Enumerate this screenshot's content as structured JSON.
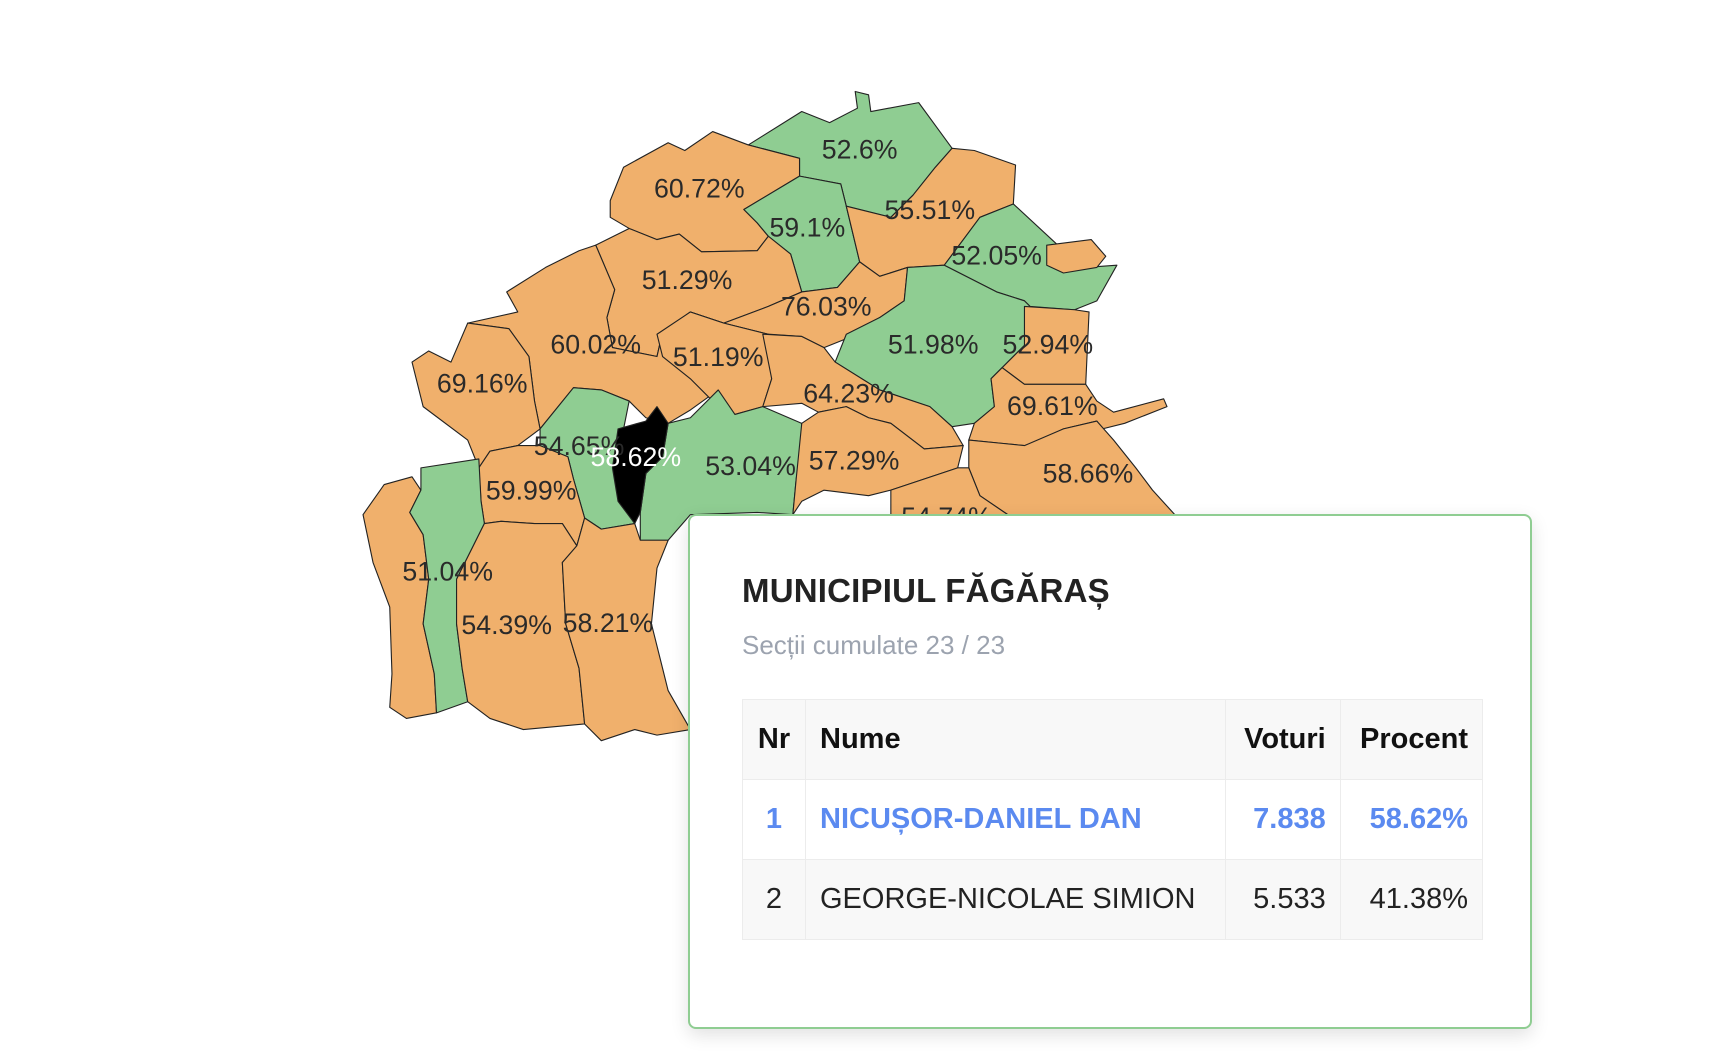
{
  "map": {
    "colors": {
      "winner_a": "#f0b06c",
      "winner_b": "#8fcd92",
      "selected": "#000000"
    },
    "regions": [
      {
        "label": "52.6%",
        "fill": "#8fcd92"
      },
      {
        "label": "60.72%",
        "fill": "#f0b06c"
      },
      {
        "label": "59.1%",
        "fill": "#8fcd92"
      },
      {
        "label": "55.51%",
        "fill": "#f0b06c"
      },
      {
        "label": "52.05%",
        "fill": "#8fcd92"
      },
      {
        "label": "51.29%",
        "fill": "#f0b06c"
      },
      {
        "label": "76.03%",
        "fill": "#f0b06c"
      },
      {
        "label": "51.98%",
        "fill": "#8fcd92"
      },
      {
        "label": "52.94%",
        "fill": "#f0b06c"
      },
      {
        "label": "60.02%",
        "fill": "#f0b06c"
      },
      {
        "label": "69.16%",
        "fill": "#f0b06c"
      },
      {
        "label": "51.19%",
        "fill": "#f0b06c"
      },
      {
        "label": "64.23%",
        "fill": "#f0b06c"
      },
      {
        "label": "54.65%",
        "fill": "#8fcd92"
      },
      {
        "label": "53.04%",
        "fill": "#8fcd92"
      },
      {
        "label": "57.29%",
        "fill": "#f0b06c"
      },
      {
        "label": "69.61%",
        "fill": "#f0b06c"
      },
      {
        "label": "58.66%",
        "fill": "#f0b06c"
      },
      {
        "label": "54.74%",
        "fill": "#f0b06c"
      },
      {
        "label": "59.99%",
        "fill": "#f0b06c"
      },
      {
        "label": "51.04%",
        "fill": "#f0b06c"
      },
      {
        "label": "",
        "fill": "#8fcd92"
      },
      {
        "label": "54.39%",
        "fill": "#f0b06c"
      },
      {
        "label": "58.21%",
        "fill": "#f0b06c"
      },
      {
        "label": "58.62%",
        "fill": "#000000",
        "selected": true
      }
    ]
  },
  "popup": {
    "title": "MUNICIPIUL FĂGĂRAȘ",
    "subtitle": "Secții cumulate 23 / 23",
    "headers": {
      "nr": "Nr",
      "name": "Nume",
      "votes": "Voturi",
      "percent": "Procent"
    },
    "rows": [
      {
        "nr": "1",
        "name": "NICUȘOR-DANIEL DAN",
        "votes": "7.838",
        "percent": "58.62%",
        "winner": true
      },
      {
        "nr": "2",
        "name": "GEORGE-NICOLAE SIMION",
        "votes": "5.533",
        "percent": "41.38%"
      }
    ],
    "winner_color": "#5b8af0"
  }
}
